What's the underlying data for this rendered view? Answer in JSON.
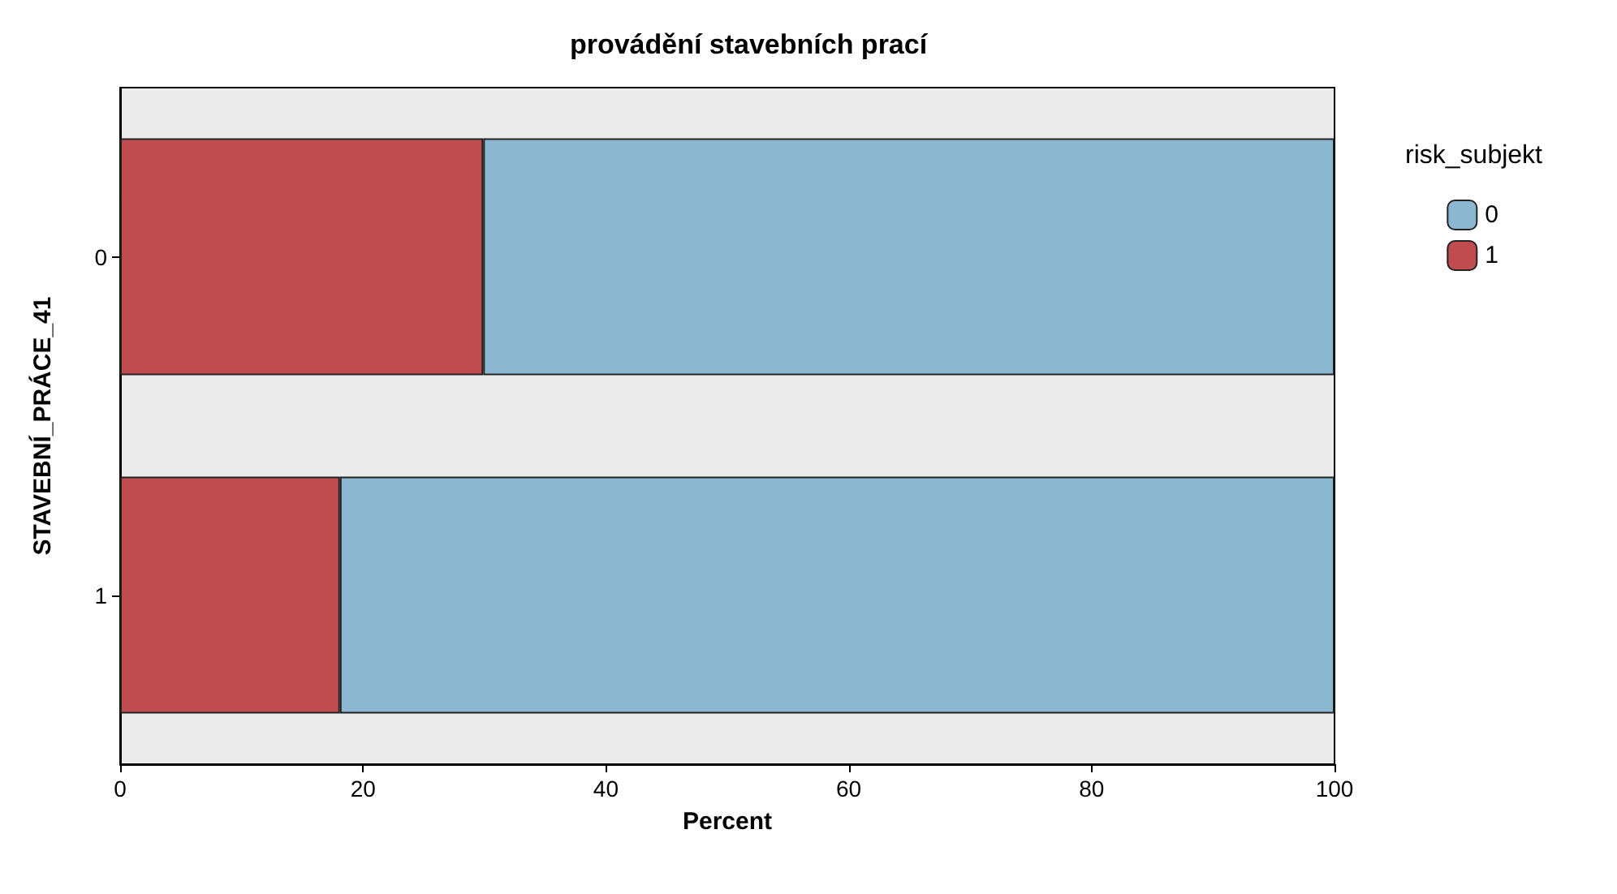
{
  "chart_data": {
    "type": "bar",
    "title": "provádění stavebních prací",
    "xlabel": "Percent",
    "ylabel": "STAVEBNÍ_PRÁCE_41",
    "legend_title": "risk_subjekt",
    "orientation": "horizontal",
    "stacked": true,
    "categories": [
      "0",
      "1"
    ],
    "series": [
      {
        "name": "1",
        "color": "#c04c50",
        "values": [
          29.9,
          18.1
        ]
      },
      {
        "name": "0",
        "color": "#8bb8d0",
        "values": [
          70.1,
          81.9
        ]
      }
    ],
    "xlim": [
      0,
      100
    ],
    "xticks": [
      0,
      20,
      40,
      60,
      80,
      100
    ],
    "grid": false,
    "legend": "top right"
  }
}
